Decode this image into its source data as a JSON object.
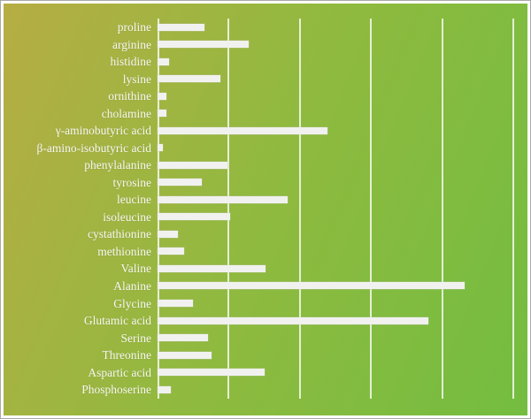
{
  "chart_data": {
    "type": "bar",
    "orientation": "horizontal",
    "title": "",
    "xlabel": "",
    "ylabel": "",
    "legend": "none",
    "grid": "vertical",
    "xlim": [
      0,
      5
    ],
    "gridline_interval": 1,
    "categories": [
      "proline",
      "arginine",
      "histidine",
      "lysine",
      "ornithine",
      "cholamine",
      "γ-aminobutyric acid",
      "β-amino-isobutyric acid",
      "phenylalanine",
      "tyrosine",
      "leucine",
      "isoleucine",
      "cystathionine",
      "methionine",
      "Valine",
      "Alanine",
      "Glycine",
      "Glutamic acid",
      "Serine",
      "Threonine",
      "Aspartic acid",
      "Phosphoserine"
    ],
    "values": [
      0.66,
      1.28,
      0.16,
      0.88,
      0.12,
      0.12,
      2.39,
      0.08,
      0.98,
      0.62,
      1.83,
      1.02,
      0.28,
      0.37,
      1.52,
      4.32,
      0.5,
      3.81,
      0.71,
      0.76,
      1.5,
      0.19
    ],
    "value_units": "relative gridline units (no tick labels shown in image)"
  },
  "colors": {
    "background_gradient_start": "#b6ad44",
    "background_gradient_mid": "#8fba3f",
    "background_gradient_end": "#73bd40",
    "bar_fill": "#f1f1ef",
    "gridline": "#ffffff",
    "label_text": "#f7f7f2",
    "frame_border": "#a8a8a8"
  }
}
